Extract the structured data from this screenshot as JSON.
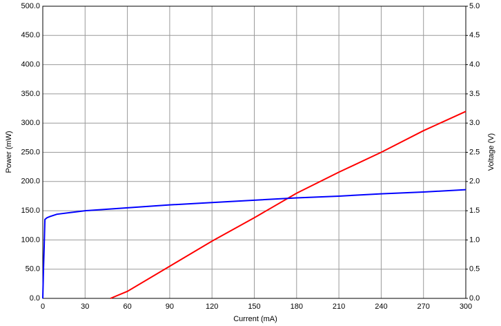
{
  "chart_data": {
    "type": "line",
    "x_label": "Current (mA)",
    "y_label": "Power (mW)",
    "y2_label": "Voltage (V)",
    "xlim": [
      0,
      300
    ],
    "xticks": [
      0,
      30,
      60,
      90,
      120,
      150,
      180,
      210,
      240,
      270,
      300
    ],
    "ylim": [
      0,
      500
    ],
    "yticks": [
      {
        "value": 0,
        "label": "0.0"
      },
      {
        "value": 50,
        "label": "50.0"
      },
      {
        "value": 100,
        "label": "100.0"
      },
      {
        "value": 150,
        "label": "150.0"
      },
      {
        "value": 200,
        "label": "200.0"
      },
      {
        "value": 250,
        "label": "250.0"
      },
      {
        "value": 300,
        "label": "300.0"
      },
      {
        "value": 350,
        "label": "350.0"
      },
      {
        "value": 400,
        "label": "400.0"
      },
      {
        "value": 450,
        "label": "450.0"
      },
      {
        "value": 500,
        "label": "500.0"
      }
    ],
    "y2lim": [
      0,
      5
    ],
    "y2ticks": [
      {
        "value": 0,
        "label": "0.0"
      },
      0.5,
      {
        "value": 1,
        "label": "1.0"
      },
      1.5,
      {
        "value": 2,
        "label": "2.0"
      },
      2.5,
      {
        "value": 3,
        "label": "3.0"
      },
      3.5,
      {
        "value": 4,
        "label": "4.0"
      },
      4.5,
      {
        "value": 5,
        "label": "5.0"
      }
    ],
    "grid": true,
    "series": [
      {
        "color": "#ff0000",
        "x": [
          48,
          60,
          90,
          120,
          150,
          180,
          210,
          240,
          270,
          300
        ],
        "values": [
          0,
          12,
          55,
          98,
          138,
          180,
          216,
          250,
          287,
          320
        ]
      },
      {
        "color": "#0000ff",
        "axis": "y2",
        "x": [
          0,
          0.5,
          1,
          1.5,
          3,
          5,
          10,
          20,
          30,
          60,
          90,
          120,
          150,
          180,
          210,
          240,
          270,
          300
        ],
        "values": [
          0,
          0.5,
          0.9,
          1.35,
          1.38,
          1.4,
          1.44,
          1.47,
          1.5,
          1.55,
          1.6,
          1.64,
          1.68,
          1.72,
          1.75,
          1.79,
          1.82,
          1.86
        ]
      }
    ]
  }
}
